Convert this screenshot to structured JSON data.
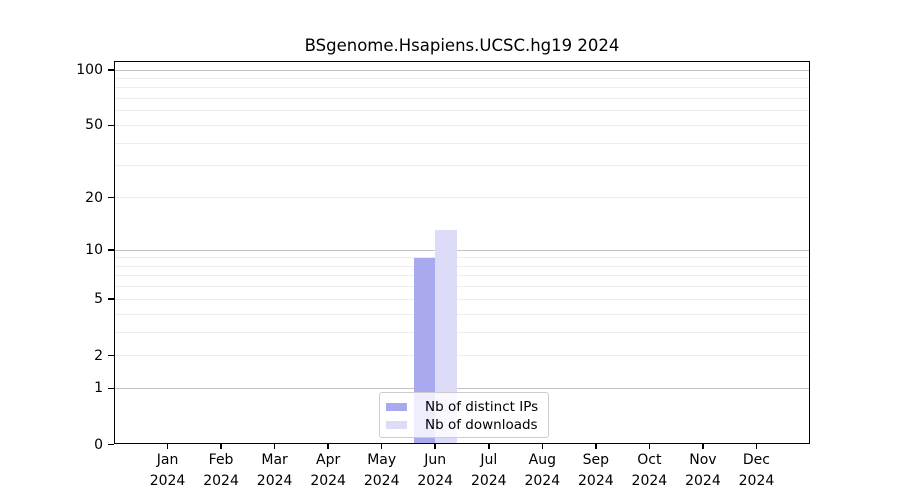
{
  "chart_data": {
    "type": "bar",
    "title": "BSgenome.Hsapiens.UCSC.hg19 2024",
    "year": "2024",
    "categories": [
      "Jan",
      "Feb",
      "Mar",
      "Apr",
      "May",
      "Jun",
      "Jul",
      "Aug",
      "Sep",
      "Oct",
      "Nov",
      "Dec"
    ],
    "series": [
      {
        "name": "Nb of distinct IPs",
        "color": "#a9a9f0",
        "values": [
          0,
          0,
          0,
          0,
          0,
          9,
          0,
          0,
          0,
          0,
          0,
          0
        ]
      },
      {
        "name": "Nb of downloads",
        "color": "#dcdcf8",
        "values": [
          0,
          0,
          0,
          0,
          0,
          13,
          0,
          0,
          0,
          0,
          0,
          0
        ]
      }
    ],
    "yticks": [
      0,
      1,
      2,
      5,
      10,
      20,
      50,
      100
    ],
    "grid_major": [
      1,
      10,
      100
    ],
    "grid_minor": [
      2,
      3,
      4,
      5,
      6,
      7,
      8,
      9,
      20,
      30,
      40,
      50,
      60,
      70,
      80,
      90
    ],
    "scale": "log1p",
    "ymax": 100,
    "ylim": [
      0,
      112
    ],
    "legend_position": "bottom-center",
    "legend_entries": [
      "Nb of distinct IPs",
      "Nb of downloads"
    ],
    "colors": {
      "grid_major": "#c3c3c3",
      "grid_minor": "#ededed",
      "axis": "#000000",
      "background": "#ffffff"
    }
  }
}
